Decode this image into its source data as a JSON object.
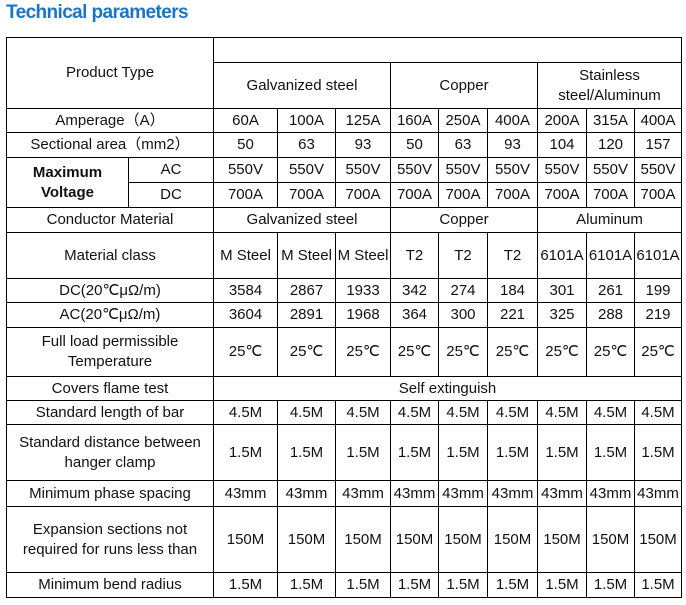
{
  "title": "Technical parameters",
  "header": {
    "product_type": "Product Type",
    "groups": [
      "Galvanized steel",
      "Copper",
      "Stainless steel/Aluminum"
    ]
  },
  "rows": [
    {
      "label": "Amperage（A）",
      "values": [
        "60A",
        "100A",
        "125A",
        "160A",
        "250A",
        "400A",
        "200A",
        "315A",
        "400A"
      ]
    },
    {
      "label": "Sectional area（mm2）",
      "values": [
        "50",
        "63",
        "93",
        "50",
        "63",
        "93",
        "104",
        "120",
        "157"
      ]
    }
  ],
  "voltage": {
    "label": "Maximum Voltage",
    "ac": {
      "label": "AC",
      "values": [
        "550V",
        "550V",
        "550V",
        "550V",
        "550V",
        "550V",
        "550V",
        "550V",
        "550V"
      ]
    },
    "dc": {
      "label": "DC",
      "values": [
        "700A",
        "700A",
        "700A",
        "700A",
        "700A",
        "700A",
        "700A",
        "700A",
        "700A"
      ]
    }
  },
  "conductor": {
    "label": "Conductor Material",
    "groups": [
      "Galvanized steel",
      "Copper",
      "Aluminum"
    ]
  },
  "rows2": [
    {
      "label": "Material class",
      "values": [
        "M Steel",
        "M Steel",
        "M Steel",
        "T2",
        "T2",
        "T2",
        "6101A",
        "6101A",
        "6101A"
      ]
    },
    {
      "label": "DC(20℃μΩ/m)",
      "values": [
        "3584",
        "2867",
        "1933",
        "342",
        "274",
        "184",
        "301",
        "261",
        "199"
      ]
    },
    {
      "label": "AC(20℃μΩ/m)",
      "values": [
        "3604",
        "2891",
        "1968",
        "364",
        "300",
        "221",
        "325",
        "288",
        "219"
      ]
    },
    {
      "label": "Full load permissible Temperature",
      "values": [
        "25℃",
        "25℃",
        "25℃",
        "25℃",
        "25℃",
        "25℃",
        "25℃",
        "25℃",
        "25℃"
      ]
    }
  ],
  "flame": {
    "label": "Covers flame test",
    "value": "Self extinguish"
  },
  "rows3": [
    {
      "label": "Standard length of bar",
      "values": [
        "4.5M",
        "4.5M",
        "4.5M",
        "4.5M",
        "4.5M",
        "4.5M",
        "4.5M",
        "4.5M",
        "4.5M"
      ]
    },
    {
      "label": "Standard distance between hanger clamp",
      "values": [
        "1.5M",
        "1.5M",
        "1.5M",
        "1.5M",
        "1.5M",
        "1.5M",
        "1.5M",
        "1.5M",
        "1.5M"
      ]
    },
    {
      "label": "Minimum phase spacing",
      "values": [
        "43mm",
        "43mm",
        "43mm",
        "43mm",
        "43mm",
        "43mm",
        "43mm",
        "43mm",
        "43mm"
      ]
    },
    {
      "label": "Expansion sections not required for runs less than",
      "values": [
        "150M",
        "150M",
        "150M",
        "150M",
        "150M",
        "150M",
        "150M",
        "150M",
        "150M"
      ]
    },
    {
      "label": "Minimum bend radius",
      "values": [
        "1.5M",
        "1.5M",
        "1.5M",
        "1.5M",
        "1.5M",
        "1.5M",
        "1.5M",
        "1.5M",
        "1.5M"
      ]
    }
  ]
}
